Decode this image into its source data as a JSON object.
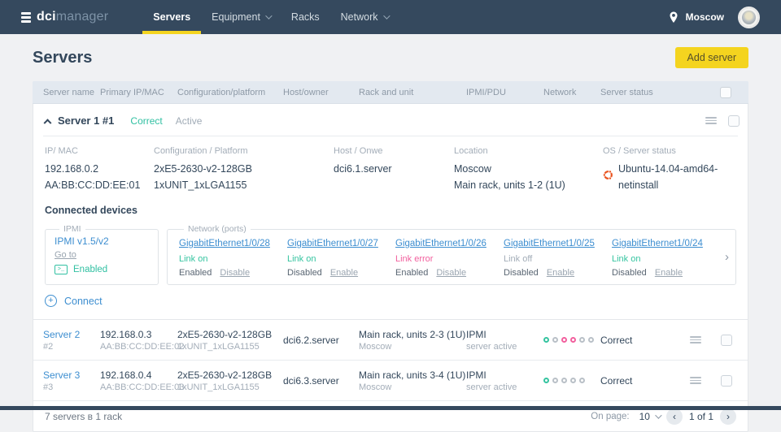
{
  "header": {
    "logo_bold": "dci",
    "logo_light": "manager",
    "nav": [
      {
        "label": "Servers"
      },
      {
        "label": "Equipment"
      },
      {
        "label": "Racks"
      },
      {
        "label": "Network"
      }
    ],
    "location": "Moscow"
  },
  "page": {
    "title": "Servers",
    "add_button": "Add server"
  },
  "table": {
    "columns": {
      "name": "Server name",
      "ip": "Primary IP/MAC",
      "config": "Configuration/platform",
      "host": "Host/owner",
      "rack": "Rack and unit",
      "ipmi": "IPMI/PDU",
      "network": "Network",
      "status": "Server status"
    }
  },
  "expanded": {
    "name": "Server 1 #1",
    "status": "Correct",
    "state": "Active",
    "details": {
      "ip_label": "IP/ MAC",
      "ip": "192.168.0.2",
      "mac": "AA:BB:CC:DD:EE:01",
      "config_label": "Configuration / Platform",
      "config1": "2xE5-2630-v2-128GB",
      "config2": "1xUNIT_1xLGA1155",
      "host_label": "Host / Onwe",
      "host": "dci6.1.server",
      "location_label": "Location",
      "location1": "Moscow",
      "location2": "Main rack, units 1-2 (1U)",
      "os_label": "OS / Server status",
      "os": "Ubuntu-14.04-amd64-netinstall"
    },
    "connected_title": "Connected devices",
    "ipmi_box": {
      "legend": "IPMI",
      "title": "IPMI v1.5/v2",
      "goto": "Go to",
      "status": "Enabled"
    },
    "ports_legend": "Network (ports)",
    "ports": [
      {
        "name": "GigabitEthernet1/0/28",
        "link": "Link on",
        "state": "Enabled",
        "action": "Disable"
      },
      {
        "name": "GigabitEthernet1/0/27",
        "link": "Link on",
        "state": "Disabled",
        "action": "Enable"
      },
      {
        "name": "GigabitEthernet1/0/26",
        "link": "Link error",
        "state": "Enabled",
        "action": "Disable"
      },
      {
        "name": "GigabitEthernet1/0/25",
        "link": "Link off",
        "state": "Disabled",
        "action": "Enable"
      },
      {
        "name": "GigabitEthernet1/0/24",
        "link": "Link on",
        "state": "Disabled",
        "action": "Enable"
      }
    ],
    "connect_label": "Connect"
  },
  "rows": [
    {
      "name": "Server 2",
      "id": "#2",
      "ip": "192.168.0.3",
      "mac": "AA:BB:CC:DD:EE:02",
      "config1": "2xE5-2630-v2-128GB",
      "config2": "1xUNIT_1xLGA1155",
      "host": "dci6.2.server",
      "rack": "Main rack, units 2-3 (1U)",
      "rack_city": "Moscow",
      "ipmi": "IPMI",
      "ipmi_sub": "server active",
      "dots": [
        "on",
        "off",
        "error",
        "error",
        "off",
        "off"
      ],
      "status": "Correct"
    },
    {
      "name": "Server 3",
      "id": "#3",
      "ip": "192.168.0.4",
      "mac": "AA:BB:CC:DD:EE:03",
      "config1": "2xE5-2630-v2-128GB",
      "config2": "1xUNIT_1xLGA1155",
      "host": "dci6.3.server",
      "rack": "Main rack, units 3-4 (1U)",
      "rack_city": "Moscow",
      "ipmi": "IPMI",
      "ipmi_sub": "server active",
      "dots": [
        "on",
        "off",
        "off",
        "off",
        "off"
      ],
      "status": "Correct"
    }
  ],
  "footer": {
    "summary": "7 servers в 1 rack",
    "on_page_label": "On page:",
    "per_page": "10",
    "page_info": "1 of 1"
  },
  "colors": {
    "navy": "#35495e",
    "accent_yellow": "#f4d41f",
    "teal": "#31c0a2",
    "pink": "#f2609e",
    "link_blue": "#3d8ed0"
  }
}
